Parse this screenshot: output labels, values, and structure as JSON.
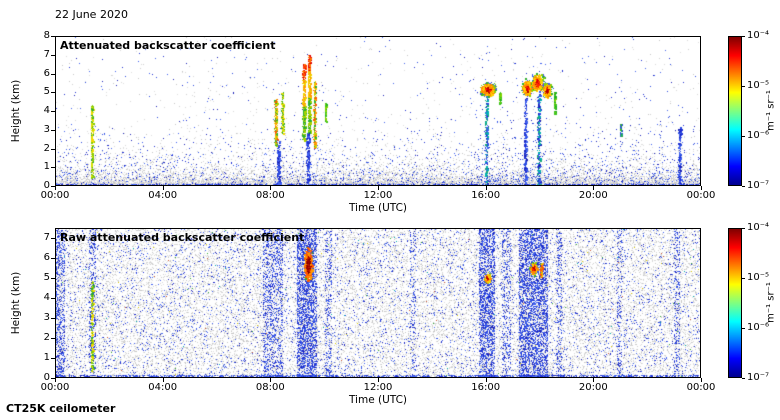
{
  "figure": {
    "date": "22 June 2020",
    "instrument": "CT25K ceilometer"
  },
  "colors": {
    "axis": "#000000",
    "background": "#ffffff",
    "jet_stops_bottom_to_top": [
      "#00008f",
      "#0000ff",
      "#0080ff",
      "#00ffff",
      "#80ff80",
      "#ffff00",
      "#ff8000",
      "#ff0000",
      "#800000"
    ],
    "noise_gray": [
      "#c6c6c6",
      "#cfcfcf",
      "#d8d8d8",
      "#dedede"
    ],
    "noise_blue": [
      "#1f2fd4",
      "#2a4ae0",
      "#3c5cf0",
      "#1b22b8",
      "#4466ee"
    ]
  },
  "chart_data": [
    {
      "type": "heatmap",
      "title": "Attenuated backscatter coefficient",
      "xlabel": "Time (UTC)",
      "ylabel": "Height (km)",
      "x_ticks": [
        "00:00",
        "04:00",
        "08:00",
        "12:00",
        "16:00",
        "20:00",
        "00:00"
      ],
      "x_range_hours": [
        0,
        24
      ],
      "ylim": [
        0,
        8
      ],
      "y_ticks": [
        0,
        1,
        2,
        3,
        4,
        5,
        6,
        7,
        8
      ],
      "colorbar": {
        "unit": "m⁻¹ sr⁻¹",
        "scale": "log",
        "range": [
          1e-07,
          0.0001
        ],
        "ticks": [
          "10⁻⁴",
          "10⁻⁵",
          "10⁻⁶",
          "10⁻⁷"
        ]
      },
      "noise": {
        "style": "processed",
        "gray_surface_p": 0.75,
        "gray_surface_scale_km": 0.55,
        "gray_aloft_p": 0.02,
        "gray_aloft_scale_km": 3.0,
        "gray_floor_p": 0.004,
        "blue_p": 0.12,
        "blue_scale_km": 0.9,
        "blue_floor_p": 0.004,
        "ground_line_km": 0.08,
        "ground_line_p": 0.5,
        "bands": [
          {
            "t": 1.0,
            "w": 1.8,
            "p": 0.02
          },
          {
            "t": 9.2,
            "w": 1.6,
            "p": 0.03
          },
          {
            "t": 16.9,
            "w": 3.2,
            "p": 0.045
          },
          {
            "t": 21.8,
            "w": 3.4,
            "p": 0.035
          }
        ]
      },
      "features": [
        {
          "kind": "column",
          "t": 1.35,
          "w": 0.07,
          "h0": 0.4,
          "h1": 4.3,
          "n": 260,
          "palette": "mix_gy"
        },
        {
          "kind": "column",
          "t": 8.2,
          "w": 0.09,
          "h0": 2.1,
          "h1": 4.6,
          "n": 240,
          "palette": "mix_gyo"
        },
        {
          "kind": "column",
          "t": 8.45,
          "w": 0.07,
          "h0": 2.8,
          "h1": 5.0,
          "n": 170,
          "palette": "mix_gy"
        },
        {
          "kind": "column",
          "t": 9.25,
          "w": 0.1,
          "h0": 2.4,
          "h1": 6.5,
          "n": 380,
          "palette": "mix_warm"
        },
        {
          "kind": "column",
          "t": 9.45,
          "w": 0.1,
          "h0": 2.8,
          "h1": 7.0,
          "n": 420,
          "palette": "mix_warm"
        },
        {
          "kind": "column",
          "t": 9.65,
          "w": 0.08,
          "h0": 2.0,
          "h1": 5.6,
          "n": 240,
          "palette": "mix_gyo"
        },
        {
          "kind": "column",
          "t": 10.05,
          "w": 0.05,
          "h0": 3.4,
          "h1": 4.4,
          "n": 90,
          "palette": "green"
        },
        {
          "kind": "column",
          "t": 8.3,
          "w": 0.1,
          "h0": 0.0,
          "h1": 2.4,
          "n": 160,
          "palette": "blue"
        },
        {
          "kind": "column",
          "t": 9.4,
          "w": 0.12,
          "h0": 0.0,
          "h1": 2.8,
          "n": 200,
          "palette": "blue"
        },
        {
          "kind": "blob",
          "t": 16.1,
          "w": 0.5,
          "hc": 5.15,
          "hs": 0.3,
          "n": 800,
          "palette": "warm_core"
        },
        {
          "kind": "column",
          "t": 16.05,
          "w": 0.08,
          "h0": 0.0,
          "h1": 4.8,
          "n": 220,
          "palette": "blue_green"
        },
        {
          "kind": "column",
          "t": 16.55,
          "w": 0.05,
          "h0": 4.4,
          "h1": 5.0,
          "n": 60,
          "palette": "green"
        },
        {
          "kind": "blob",
          "t": 17.55,
          "w": 0.33,
          "hc": 5.25,
          "hs": 0.38,
          "n": 520,
          "palette": "warm_core"
        },
        {
          "kind": "blob",
          "t": 17.95,
          "w": 0.38,
          "hc": 5.5,
          "hs": 0.42,
          "n": 640,
          "palette": "warm_core"
        },
        {
          "kind": "blob",
          "t": 18.3,
          "w": 0.28,
          "hc": 5.1,
          "hs": 0.35,
          "n": 360,
          "palette": "mix_gyo"
        },
        {
          "kind": "column",
          "t": 17.5,
          "w": 0.09,
          "h0": 0.0,
          "h1": 4.7,
          "n": 230,
          "palette": "blue"
        },
        {
          "kind": "column",
          "t": 18.0,
          "w": 0.1,
          "h0": 0.0,
          "h1": 4.9,
          "n": 260,
          "palette": "blue_green"
        },
        {
          "kind": "column",
          "t": 18.6,
          "w": 0.06,
          "h0": 3.8,
          "h1": 5.0,
          "n": 110,
          "palette": "green"
        },
        {
          "kind": "column",
          "t": 21.05,
          "w": 0.06,
          "h0": 2.6,
          "h1": 3.3,
          "n": 70,
          "palette": "mix_gb"
        },
        {
          "kind": "column",
          "t": 23.25,
          "w": 0.09,
          "h0": 0.0,
          "h1": 3.1,
          "n": 170,
          "palette": "blue"
        }
      ]
    },
    {
      "type": "heatmap",
      "title": "Raw attenuated backscatter coefficient",
      "xlabel": "Time (UTC)",
      "ylabel": "Height (km)",
      "x_ticks": [
        "00:00",
        "04:00",
        "08:00",
        "12:00",
        "16:00",
        "20:00",
        "00:00"
      ],
      "x_range_hours": [
        0,
        24
      ],
      "ylim": [
        0,
        7.5
      ],
      "y_ticks": [
        0,
        1,
        2,
        3,
        4,
        5,
        6,
        7
      ],
      "colorbar": {
        "unit": "m⁻¹ sr⁻¹",
        "scale": "log",
        "range": [
          1e-07,
          0.0001
        ],
        "ticks": [
          "10⁻⁴",
          "10⁻⁵",
          "10⁻⁶",
          "10⁻⁷"
        ]
      },
      "noise": {
        "style": "raw",
        "gray_p": 0.2,
        "blue_p": 0.05,
        "ground_line_km": 0.1,
        "ground_line_p": 0.5,
        "color_speckle_p": 0.0015,
        "speckle_colors": [
          "#33aa33",
          "#00aaaa",
          "#ddcc00",
          "#cc5533"
        ],
        "bands": [
          {
            "t": 0.15,
            "w": 0.35,
            "p": 0.3
          },
          {
            "t": 1.35,
            "w": 0.25,
            "p": 0.22
          },
          {
            "t": 8.1,
            "w": 0.75,
            "p": 0.26
          },
          {
            "t": 9.35,
            "w": 0.75,
            "p": 0.46
          },
          {
            "t": 10.15,
            "w": 0.25,
            "p": 0.2
          },
          {
            "t": 13.3,
            "w": 0.25,
            "p": 0.14
          },
          {
            "t": 16.05,
            "w": 0.6,
            "p": 0.42
          },
          {
            "t": 16.8,
            "w": 0.35,
            "p": 0.2
          },
          {
            "t": 17.8,
            "w": 1.1,
            "p": 0.44
          },
          {
            "t": 18.75,
            "w": 0.2,
            "p": 0.22
          },
          {
            "t": 21.0,
            "w": 0.18,
            "p": 0.16
          },
          {
            "t": 23.15,
            "w": 0.22,
            "p": 0.2
          }
        ]
      },
      "features": [
        {
          "kind": "column",
          "t": 1.35,
          "w": 0.07,
          "h0": 0.3,
          "h1": 5.0,
          "n": 220,
          "palette": "mix_gy"
        },
        {
          "kind": "blob",
          "t": 9.4,
          "w": 0.3,
          "hc": 5.7,
          "hs": 0.85,
          "n": 600,
          "palette": "darkred_core"
        },
        {
          "kind": "blob",
          "t": 16.08,
          "w": 0.22,
          "hc": 5.0,
          "hs": 0.22,
          "n": 260,
          "palette": "warm_core"
        },
        {
          "kind": "blob",
          "t": 17.8,
          "w": 0.26,
          "hc": 5.5,
          "hs": 0.28,
          "n": 320,
          "palette": "warm_core"
        },
        {
          "kind": "column",
          "t": 18.1,
          "w": 0.08,
          "h0": 5.0,
          "h1": 5.8,
          "n": 80,
          "palette": "mix_gyo"
        }
      ]
    }
  ]
}
